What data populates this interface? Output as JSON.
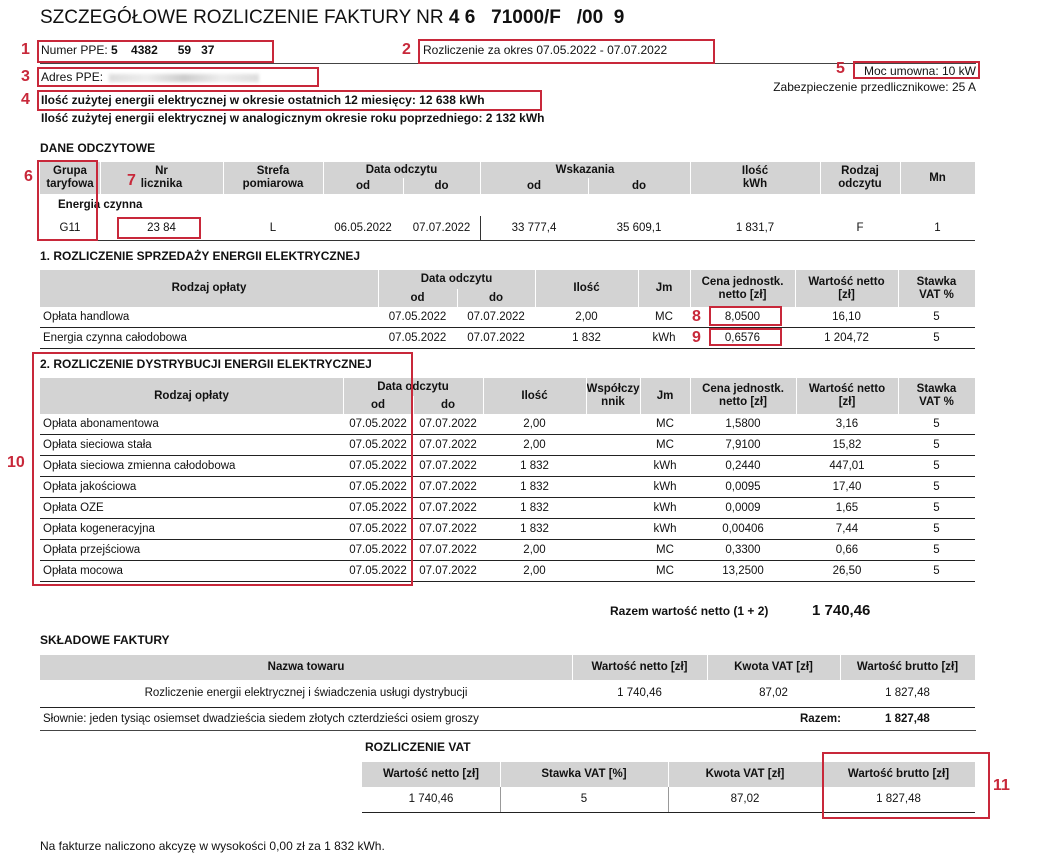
{
  "title": {
    "prefix": "SZCZEGÓŁOWE ROZLICZENIE FAKTURY NR",
    "number": "4 6   71000/F   /00  9"
  },
  "ppe": {
    "label": "Numer PPE:",
    "value": "5    4382      59   37"
  },
  "period": "Rozliczenie za okres 07.05.2022 - 07.07.2022",
  "address_label": "Adres PPE:",
  "power": "Moc umowna: 10 kW",
  "protection": "Zabezpieczenie przedlicznikowe: 25 A",
  "usage12": "Ilość zużytej energii elektrycznej w okresie ostatnich 12 miesięcy:  12 638 kWh",
  "usage_prev": "Ilość zużytej energii elektrycznej w analogicznym okresie roku poprzedniego: 2 132 kWh",
  "annotations": [
    "1",
    "2",
    "3",
    "4",
    "5",
    "6",
    "7",
    "8",
    "9",
    "10",
    "11"
  ],
  "annotation_color": "#c8283a",
  "header_color": "#d3d3d3",
  "readings": {
    "title": "DANE ODCZYTOWE",
    "headers": [
      "Grupa\ntaryfowa",
      "Nr\nlicznika",
      "Strefa\npomiarowa",
      "Data odczytu",
      "od",
      "do",
      "Wskazania",
      "od",
      "do",
      "Ilość\nkWh",
      "Rodzaj\nodczytu",
      "Mn"
    ],
    "subheader": "Energia czynna",
    "rows": [
      [
        "G11",
        "23    84",
        "L",
        "06.05.2022",
        "07.07.2022",
        "33 777,4",
        "35 609,1",
        "1 831,7",
        "F",
        "1"
      ]
    ]
  },
  "sales": {
    "title": "1. ROZLICZENIE SPRZEDAŻY ENERGII ELEKTRYCZNEJ",
    "headers": [
      "Rodzaj opłaty",
      "Data odczytu",
      "od",
      "do",
      "Ilość",
      "Jm",
      "Cena jednostk.\nnetto [zł]",
      "Wartość netto\n[zł]",
      "Stawka\nVAT %"
    ],
    "rows": [
      [
        "Opłata handlowa",
        "07.05.2022",
        "07.07.2022",
        "2,00",
        "MC",
        "8,0500",
        "16,10",
        "5"
      ],
      [
        "Energia czynna całodobowa",
        "07.05.2022",
        "07.07.2022",
        "1 832",
        "kWh",
        "0,6576",
        "1 204,72",
        "5"
      ]
    ]
  },
  "distribution": {
    "title": "2. ROZLICZENIE DYSTRYBUCJI ENERGII ELEKTRYCZNEJ",
    "headers": [
      "Rodzaj opłaty",
      "Data odczytu",
      "od",
      "do",
      "Ilość",
      "Współczy\nnnik",
      "Jm",
      "Cena jednostk.\nnetto [zł]",
      "Wartość netto\n[zł]",
      "Stawka\nVAT %"
    ],
    "rows": [
      [
        "Opłata abonamentowa",
        "07.05.2022",
        "07.07.2022",
        "2,00",
        "",
        "MC",
        "1,5800",
        "3,16",
        "5"
      ],
      [
        "Opłata sieciowa stała",
        "07.05.2022",
        "07.07.2022",
        "2,00",
        "",
        "MC",
        "7,9100",
        "15,82",
        "5"
      ],
      [
        "Opłata sieciowa zmienna całodobowa",
        "07.05.2022",
        "07.07.2022",
        "1 832",
        "",
        "kWh",
        "0,2440",
        "447,01",
        "5"
      ],
      [
        "Opłata jakościowa",
        "07.05.2022",
        "07.07.2022",
        "1 832",
        "",
        "kWh",
        "0,0095",
        "17,40",
        "5"
      ],
      [
        "Opłata OZE",
        "07.05.2022",
        "07.07.2022",
        "1 832",
        "",
        "kWh",
        "0,0009",
        "1,65",
        "5"
      ],
      [
        "Opłata kogeneracyjna",
        "07.05.2022",
        "07.07.2022",
        "1 832",
        "",
        "kWh",
        "0,00406",
        "7,44",
        "5"
      ],
      [
        "Opłata przejściowa",
        "07.05.2022",
        "07.07.2022",
        "2,00",
        "",
        "MC",
        "0,3300",
        "0,66",
        "5"
      ],
      [
        "Opłata mocowa",
        "07.05.2022",
        "07.07.2022",
        "2,00",
        "",
        "MC",
        "13,2500",
        "26,50",
        "5"
      ]
    ]
  },
  "net_total": {
    "label": "Razem wartość netto (1 + 2)",
    "value": "1 740,46"
  },
  "components": {
    "title": "SKŁADOWE FAKTURY",
    "headers": [
      "Nazwa towaru",
      "Wartość netto [zł]",
      "Kwota VAT [zł]",
      "Wartość brutto [zł]"
    ],
    "rows": [
      [
        "Rozliczenie energii elektrycznej i świadczenia usługi dystrybucji",
        "1 740,46",
        "87,02",
        "1 827,48"
      ]
    ],
    "words": "Słownie: jeden tysiąc osiemset dwadzieścia siedem złotych czterdzieści osiem groszy",
    "total_label": "Razem:",
    "total_value": "1 827,48"
  },
  "vat": {
    "title": "ROZLICZENIE VAT",
    "headers": [
      "Wartość netto [zł]",
      "Stawka VAT [%]",
      "Kwota VAT [zł]",
      "Wartość brutto [zł]"
    ],
    "rows": [
      [
        "1 740,46",
        "5",
        "87,02",
        "1 827,48"
      ]
    ]
  },
  "excise": "Na fakturze naliczono akcyzę w wysokości 0,00 zł za 1 832 kWh."
}
